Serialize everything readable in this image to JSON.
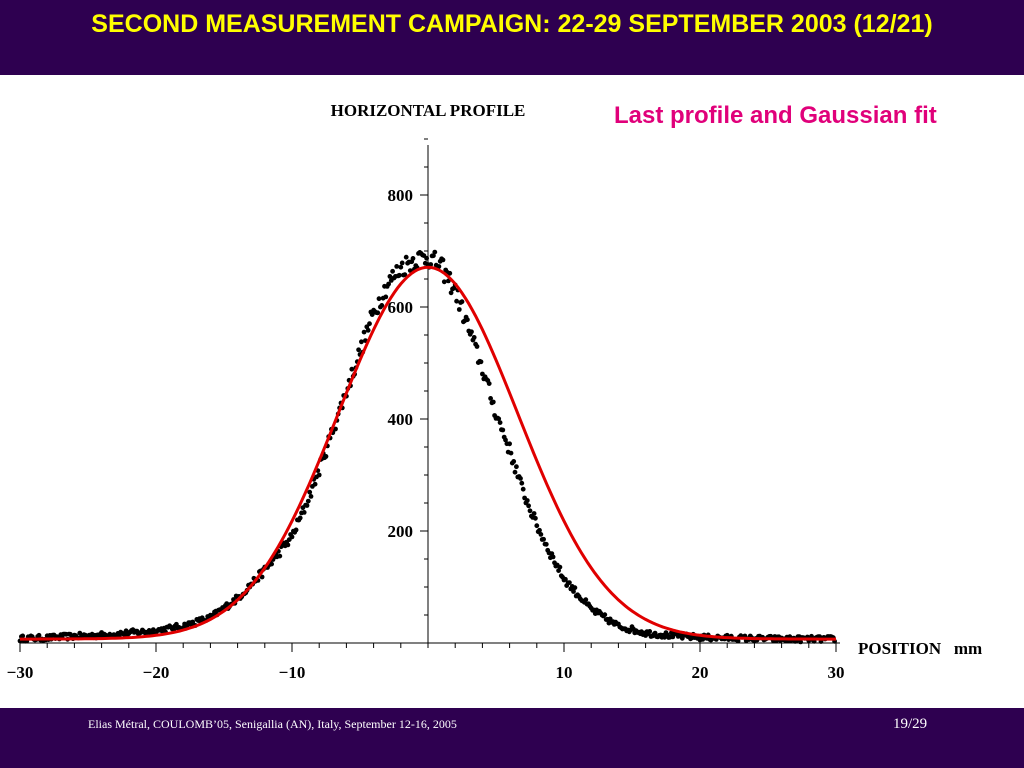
{
  "slide": {
    "title": "SECOND MEASUREMENT CAMPAIGN: 22-29 SEPTEMBER 2003 (12/21)",
    "subtitle": "Last profile and Gaussian fit"
  },
  "footer": {
    "text": "Elias Métral, COULOMB’05, Senigallia (AN), Italy, September 12-16, 2005",
    "page": "19/29"
  },
  "colors": {
    "banner": "#2e0050",
    "title": "#ffff00",
    "subtitle": "#e0007a",
    "fit": "#e00000",
    "points": "#000000"
  },
  "chart_data": {
    "type": "scatter",
    "title": "HORIZONTAL  PROFILE",
    "xlabel": "POSITION   mm",
    "ylabel": "",
    "xlim": [
      -30,
      30
    ],
    "ylim": [
      0,
      900
    ],
    "x_ticks": [
      -30,
      -20,
      -10,
      10,
      20,
      30
    ],
    "x_tick_labels": [
      "−30",
      "−20",
      "−10",
      "10",
      "20",
      "30"
    ],
    "y_ticks": [
      200,
      400,
      600,
      800
    ],
    "y_tick_labels": [
      "200",
      "400",
      "600",
      "800"
    ],
    "grid": false,
    "series": [
      {
        "kind": "measured-points",
        "x": [
          -30,
          -28,
          -26,
          -24,
          -22,
          -20,
          -18,
          -16,
          -14,
          -12,
          -10,
          -9,
          -8,
          -7,
          -6,
          -5,
          -4,
          -3,
          -2,
          -1,
          0,
          1,
          2,
          3,
          4,
          5,
          6,
          7,
          8,
          9,
          10,
          12,
          14,
          16,
          18,
          20,
          22,
          24,
          26,
          28,
          30
        ],
        "y": [
          8,
          9,
          12,
          14,
          18,
          22,
          30,
          45,
          80,
          130,
          190,
          245,
          310,
          380,
          450,
          520,
          590,
          640,
          670,
          685,
          690,
          670,
          630,
          560,
          490,
          410,
          345,
          270,
          210,
          160,
          115,
          60,
          30,
          18,
          13,
          10,
          9,
          8,
          7,
          7,
          7
        ]
      },
      {
        "kind": "gaussian-fit",
        "amplitude": 664,
        "center": 0,
        "sigma": 6.6,
        "offset": 7
      }
    ]
  }
}
